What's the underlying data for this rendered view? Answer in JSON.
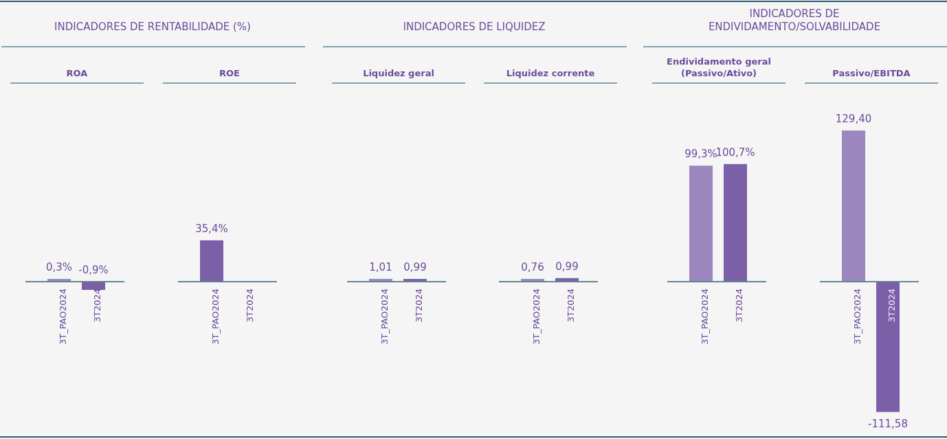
{
  "chart_data": [
    {
      "type": "bar",
      "title": "INDICADORES DE RENTABILIDADE (%)",
      "subtitle": "ROA",
      "categories": [
        "3T_PAO2024",
        "3T2024"
      ],
      "values": [
        0.3,
        -0.9
      ],
      "colors": [
        "#9b86bd",
        "#7b60a8"
      ],
      "value_labels": [
        "0,3%",
        "-0,9%"
      ]
    },
    {
      "type": "bar",
      "subtitle": "ROE",
      "categories": [
        "3T_PAO2024",
        "3T2024"
      ],
      "values": [
        35.4,
        null
      ],
      "color": "#7b60a8",
      "value_labels": [
        "35,4%",
        null
      ]
    },
    {
      "type": "bar",
      "title": "INDICADORES DE LIQUIDEZ",
      "subtitle": "Liquidez geral",
      "categories": [
        "3T_PAO2024",
        "3T2024"
      ],
      "values": [
        1.01,
        0.99
      ],
      "colors": [
        "#9b86bd",
        "#7b60a8"
      ],
      "value_labels": [
        "1,01",
        "0,99"
      ]
    },
    {
      "type": "bar",
      "subtitle": "Liquidez corrente",
      "categories": [
        "3T_PAO2024",
        "3T2024"
      ],
      "values": [
        0.76,
        0.99
      ],
      "colors": [
        "#9b86bd",
        "#7b60a8"
      ],
      "value_labels": [
        "0,76",
        "0,99"
      ]
    },
    {
      "type": "bar",
      "title": "INDICADORES DE\nENDIVIDAMENTO/SOLVABILIDADE",
      "subtitle": "Endividamento geral\n(Passivo/Ativo)",
      "categories": [
        "3T_PAO2024",
        "3T2024"
      ],
      "values": [
        99.3,
        100.7
      ],
      "colors": [
        "#9b86bd",
        "#7b60a8"
      ],
      "value_labels": [
        "99,3%",
        "100,7%"
      ]
    },
    {
      "type": "bar",
      "subtitle": "Passivo/EBITDA",
      "categories": [
        "3T_PAO2024",
        "3T2024"
      ],
      "values": [
        129.4,
        -111.58
      ],
      "colors": [
        "#9b86bd",
        "#7b60a8"
      ],
      "value_labels": [
        "129,40",
        "-111,58"
      ]
    }
  ]
}
